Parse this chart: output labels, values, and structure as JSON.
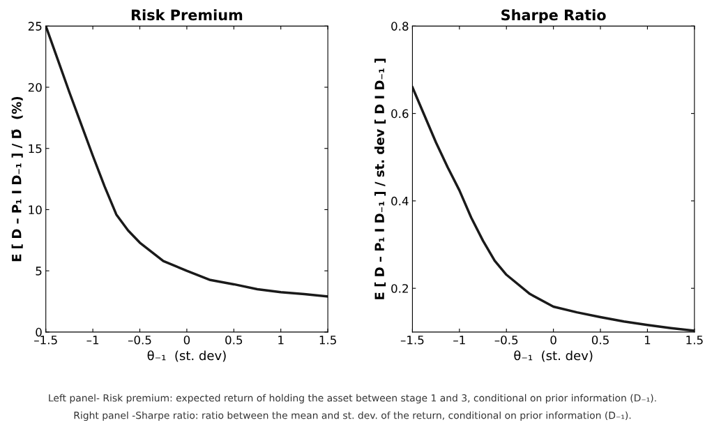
{
  "chart_data": [
    {
      "type": "line",
      "title": "Risk Premium",
      "xlabel": "θ₋₁  (st. dev)",
      "ylabel": "E [ D – P₁ I D₋₁ ] / D̄  (%)",
      "x": [
        -1.5,
        -1.375,
        -1.25,
        -1.125,
        -1,
        -0.875,
        -0.75,
        -0.625,
        -0.5,
        -0.25,
        0,
        0.25,
        0.5,
        0.75,
        1,
        1.25,
        1.5
      ],
      "series": [
        {
          "color": "#1a1a1a",
          "values": [
            25,
            22.3,
            19.6,
            17.0,
            14.4,
            11.9,
            9.6,
            8.3,
            7.3,
            5.8,
            5.0,
            4.25,
            3.9,
            3.5,
            3.25,
            3.1,
            2.9
          ]
        }
      ],
      "xlim": [
        -1.5,
        1.5
      ],
      "xticks": [
        {
          "value": -1.5,
          "label": "–1.5"
        },
        {
          "value": -1,
          "label": "–1"
        },
        {
          "value": -0.5,
          "label": "–0.5"
        },
        0,
        0.5,
        1,
        1.5
      ],
      "ylim": [
        0,
        25
      ],
      "yticks": [
        0,
        5,
        10,
        15,
        20,
        25
      ],
      "grid": false,
      "legend": false,
      "marker": "none",
      "line_style": "solid",
      "annotations": [
        "Left panel- Risk premium: expected return of holding the asset between stage 1 and 3, conditional on prior information (D₋₁).",
        "Right panel -Sharpe ratio: ratio between the mean and st. dev. of the return, conditional on prior information (D₋₁)."
      ]
    },
    {
      "type": "line",
      "title": "Sharpe Ratio",
      "xlabel": "θ₋₁  (st. dev)",
      "ylabel": "E [ D – P₁ I D₋₁ ] / st. dev [ D I D₋₁ ]",
      "x": [
        -1.5,
        -1.375,
        -1.25,
        -1.125,
        -1,
        -0.875,
        -0.75,
        -0.625,
        -0.5,
        -0.25,
        0,
        0.25,
        0.5,
        0.75,
        1,
        1.25,
        1.5
      ],
      "series": [
        {
          "color": "#1a1a1a",
          "values": [
            0.66,
            0.597,
            0.534,
            0.477,
            0.424,
            0.362,
            0.309,
            0.263,
            0.231,
            0.187,
            0.158,
            0.145,
            0.134,
            0.124,
            0.116,
            0.109,
            0.103
          ]
        }
      ],
      "xlim": [
        -1.5,
        1.5
      ],
      "xticks": [
        {
          "value": -1.5,
          "label": "–1.5"
        },
        {
          "value": -1,
          "label": "–1"
        },
        {
          "value": -0.5,
          "label": "–0.5"
        },
        0,
        0.5,
        1,
        1.5
      ],
      "ylim": [
        0.1,
        0.8
      ],
      "yticks": [
        0.2,
        0.4,
        0.6,
        0.8
      ],
      "grid": false,
      "legend": false,
      "marker": "none",
      "line_style": "solid"
    }
  ]
}
